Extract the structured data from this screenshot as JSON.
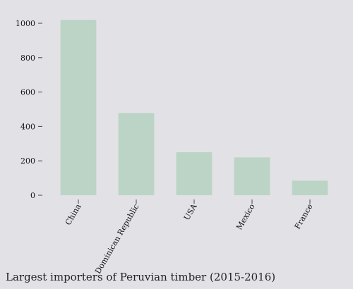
{
  "chart_data": {
    "type": "bar",
    "categories": [
      "China",
      "Dominican Republic",
      "USA",
      "Mexico",
      "France"
    ],
    "values": [
      1020,
      478,
      250,
      220,
      85
    ],
    "ylim": [
      0,
      1000
    ],
    "yticks": [
      0,
      200,
      400,
      600,
      800,
      1000
    ],
    "title": "Largest importers of Peruvian timber (2015-2016)",
    "xlabel": "",
    "ylabel": "",
    "grid": false,
    "bar_color": "#bcd4c6"
  }
}
